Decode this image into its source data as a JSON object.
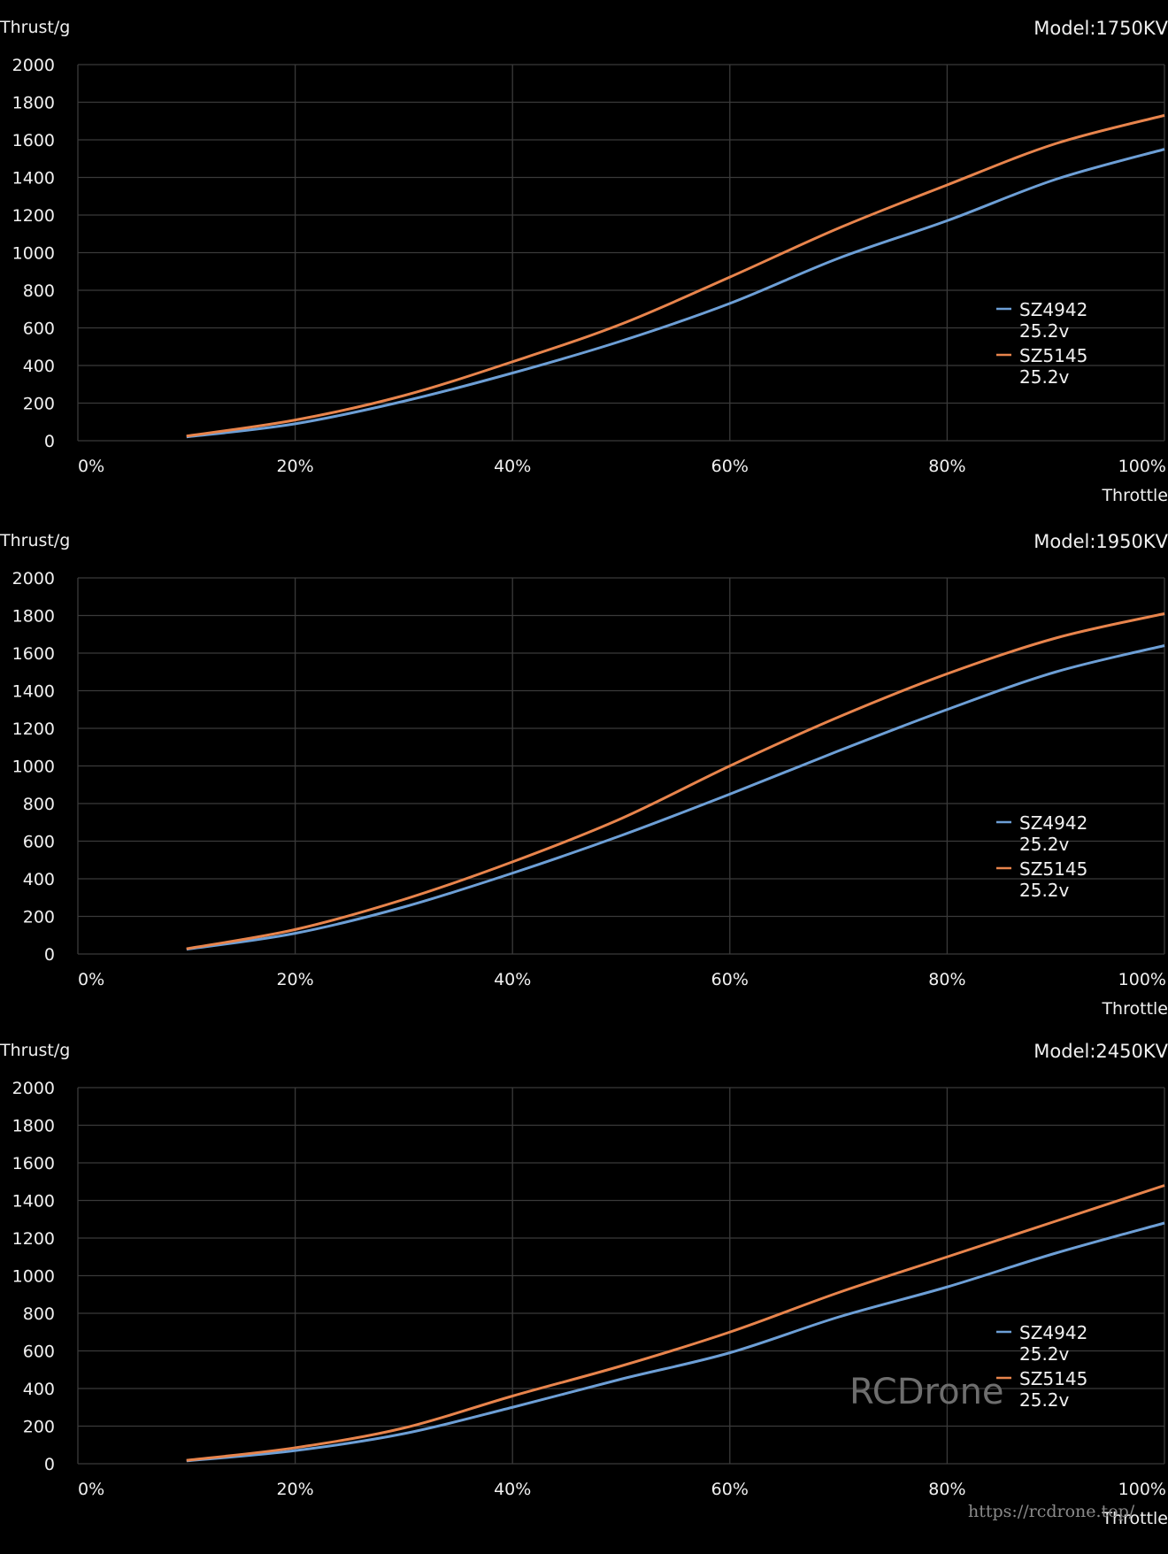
{
  "charts_text": [
    {
      "ylabel": "Thrust/g",
      "model": "Model:1750KV",
      "xlabel": "Throttle"
    },
    {
      "ylabel": "Thrust/g",
      "model": "Model:1950KV",
      "xlabel": "Throttle"
    },
    {
      "ylabel": "Thrust/g",
      "model": "Model:2450KV",
      "xlabel": "Throttle"
    }
  ],
  "yticks": [
    "0",
    "200",
    "400",
    "600",
    "800",
    "1000",
    "1200",
    "1400",
    "1600",
    "1800",
    "2000"
  ],
  "xticks": [
    "0%",
    "20%",
    "40%",
    "60%",
    "80%",
    "100%"
  ],
  "legend": [
    {
      "name": "SZ4942",
      "sub": "25.2v",
      "color": "#6d9fd6"
    },
    {
      "name": "SZ5145",
      "sub": "25.2v",
      "color": "#e8844c"
    }
  ],
  "watermark": "RCDrone",
  "url": "https://rcdrone.top/",
  "colors": {
    "background": "#000000",
    "grid": "#3a3a3a",
    "series1": "#6d9fd6",
    "series2": "#e8844c"
  },
  "chart_data": [
    {
      "type": "line",
      "title": "Model:1750KV",
      "xlabel": "Throttle",
      "ylabel": "Thrust/g",
      "x": [
        10,
        20,
        30,
        40,
        50,
        60,
        70,
        80,
        90,
        100
      ],
      "xlim": [
        0,
        100
      ],
      "ylim": [
        0,
        2000
      ],
      "grid": true,
      "legend_position": "right-middle",
      "series": [
        {
          "name": "SZ4942 25.2v",
          "values": [
            20,
            90,
            210,
            360,
            530,
            730,
            970,
            1170,
            1390,
            1550
          ]
        },
        {
          "name": "SZ5145 25.2v",
          "values": [
            25,
            110,
            240,
            420,
            620,
            870,
            1130,
            1360,
            1580,
            1730
          ]
        }
      ]
    },
    {
      "type": "line",
      "title": "Model:1950KV",
      "xlabel": "Throttle",
      "ylabel": "Thrust/g",
      "x": [
        10,
        20,
        30,
        40,
        50,
        60,
        70,
        80,
        90,
        100
      ],
      "xlim": [
        0,
        100
      ],
      "ylim": [
        0,
        2000
      ],
      "grid": true,
      "legend_position": "right-middle",
      "series": [
        {
          "name": "SZ4942 25.2v",
          "values": [
            25,
            110,
            250,
            430,
            630,
            850,
            1080,
            1300,
            1500,
            1640
          ]
        },
        {
          "name": "SZ5145 25.2v",
          "values": [
            28,
            130,
            290,
            490,
            720,
            1000,
            1260,
            1490,
            1680,
            1810
          ]
        }
      ]
    },
    {
      "type": "line",
      "title": "Model:2450KV",
      "xlabel": "Throttle",
      "ylabel": "Thrust/g",
      "x": [
        10,
        20,
        30,
        40,
        50,
        60,
        70,
        80,
        90,
        100
      ],
      "xlim": [
        0,
        100
      ],
      "ylim": [
        0,
        2000
      ],
      "grid": true,
      "legend_position": "right-middle",
      "series": [
        {
          "name": "SZ4942 25.2v",
          "values": [
            15,
            70,
            160,
            300,
            450,
            590,
            780,
            940,
            1120,
            1280
          ]
        },
        {
          "name": "SZ5145 25.2v",
          "values": [
            18,
            85,
            190,
            360,
            520,
            700,
            910,
            1100,
            1290,
            1480
          ]
        }
      ]
    }
  ]
}
